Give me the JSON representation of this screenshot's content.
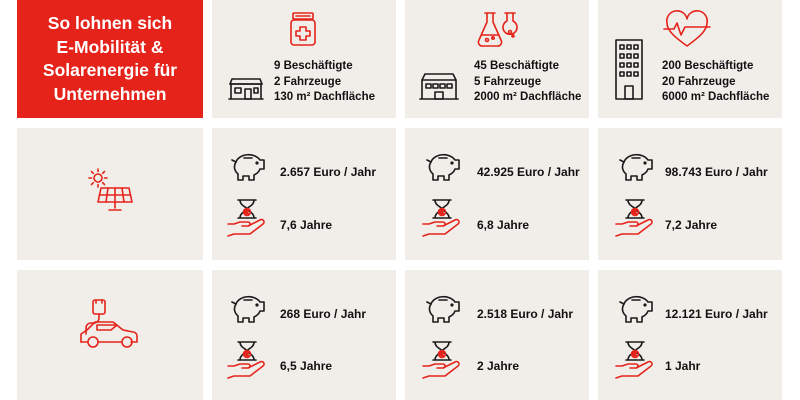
{
  "title": "So lohnen sich\nE-Mobilität &\nSolarenergie für\nUnternehmen",
  "companies": [
    {
      "employees": "9 Beschäftigte",
      "vehicles": "2 Fahrzeuge",
      "roof": "130 m² Dachfläche"
    },
    {
      "employees": "45 Beschäftigte",
      "vehicles": "5 Fahrzeuge",
      "roof": "2000 m² Dachfläche"
    },
    {
      "employees": "200 Beschäftigte",
      "vehicles": "20 Fahrzeuge",
      "roof": "6000 m² Dachfläche"
    }
  ],
  "solar": [
    {
      "savings": "2.657 Euro / Jahr",
      "payback": "7,6 Jahre"
    },
    {
      "savings": "42.925 Euro / Jahr",
      "payback": "6,8 Jahre"
    },
    {
      "savings": "98.743 Euro / Jahr",
      "payback": "7,2 Jahre"
    }
  ],
  "emobility": [
    {
      "savings": "268 Euro / Jahr",
      "payback": "6,5 Jahre"
    },
    {
      "savings": "2.518 Euro / Jahr",
      "payback": "2 Jahre"
    },
    {
      "savings": "12.121 Euro / Jahr",
      "payback": "1 Jahr"
    }
  ],
  "colors": {
    "accent": "#e5231b",
    "cell_bg": "#f1eeea",
    "text": "#1a1a1a"
  },
  "icons": {
    "header": [
      "medicine-bottle-icon",
      "laboratory-flasks-icon",
      "heart-pulse-icon"
    ],
    "buildings": [
      "small-shop-icon",
      "warehouse-icon",
      "office-tower-icon"
    ],
    "rows": [
      "solar-panel-icon",
      "electric-car-charging-icon"
    ],
    "savings": "piggy-bank-icon",
    "payback": "hourglass-hand-icon"
  }
}
